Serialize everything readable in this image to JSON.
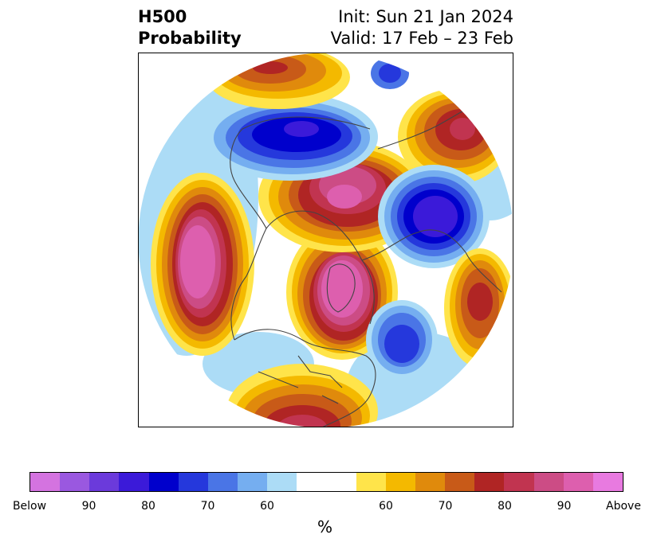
{
  "header": {
    "title_line1": "H500",
    "title_line2": "Probability",
    "init": "Init: Sun 21 Jan 2024",
    "valid": "Valid: 17 Feb – 23 Feb"
  },
  "colorbar": {
    "below_colors": [
      "#d473e0",
      "#9a58e0",
      "#6b3adb",
      "#3b1ad9",
      "#0000cc",
      "#2538dc",
      "#4a75e6",
      "#75aef0",
      "#acdcf6"
    ],
    "neutral_color": "#ffffff",
    "above_colors": [
      "#ffe44a",
      "#f4b900",
      "#e08a0c",
      "#c85a18",
      "#b02524",
      "#c13450",
      "#cc4c85",
      "#dd5fae",
      "#e87ae0"
    ],
    "tick_labels": [
      "Below",
      "90",
      "80",
      "70",
      "60",
      "60",
      "70",
      "80",
      "90",
      "Above"
    ],
    "unit": "%"
  },
  "map": {
    "projection": "polar stereographic",
    "anomalies": [
      {
        "region": "Bering Sea / Alaska",
        "sign": "above",
        "level": "Above"
      },
      {
        "region": "Greenland / Canadian Arctic",
        "sign": "above",
        "level": "90"
      },
      {
        "region": "Eurasian Arctic / Siberia",
        "sign": "above",
        "level": "90"
      },
      {
        "region": "Northern Europe",
        "sign": "below",
        "level": "90"
      },
      {
        "region": "Northern Siberia",
        "sign": "below",
        "level": "90"
      },
      {
        "region": "Eastern Canada / North Atlantic",
        "sign": "below",
        "level": "80"
      },
      {
        "region": "Southern USA / Gulf",
        "sign": "above",
        "level": "80"
      },
      {
        "region": "Eastern Mediterranean",
        "sign": "above",
        "level": "80"
      },
      {
        "region": "Northeast Asia",
        "sign": "above",
        "level": "80"
      }
    ]
  }
}
